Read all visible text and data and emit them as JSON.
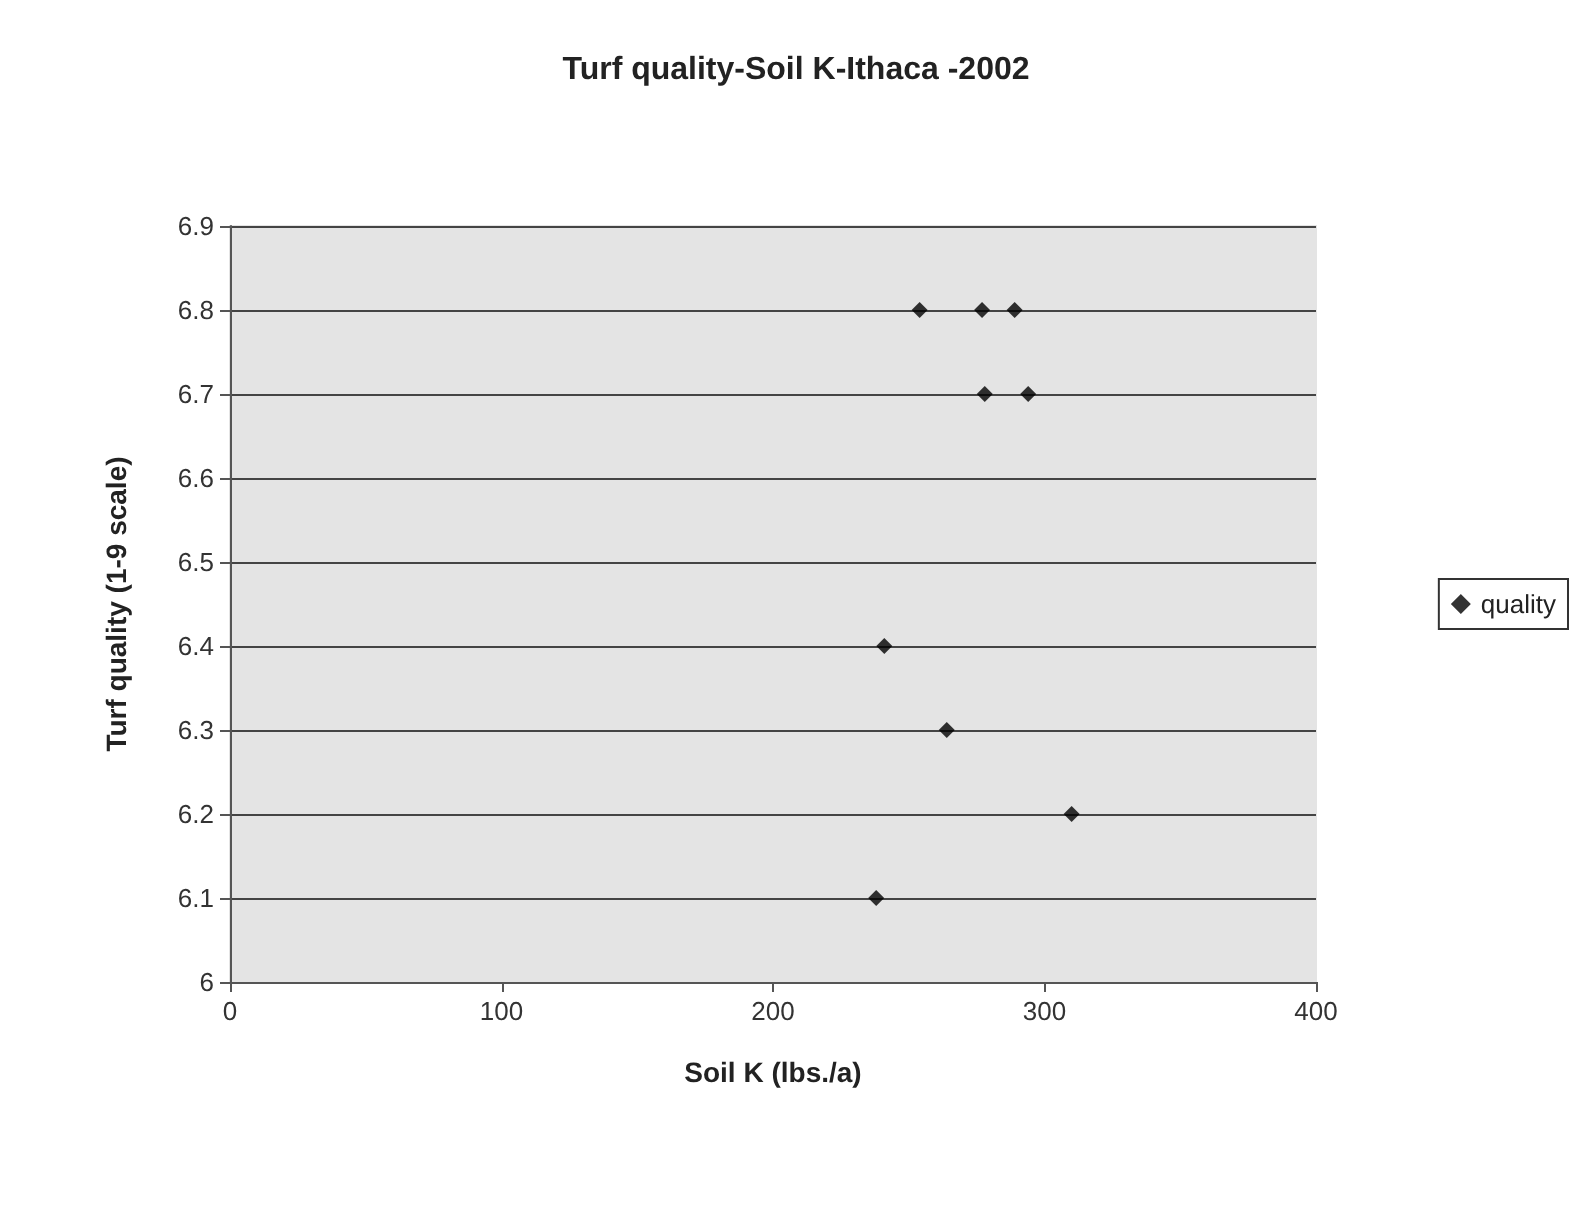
{
  "chart_data": {
    "type": "scatter",
    "title": "Turf quality-Soil K-Ithaca -2002",
    "xlabel": "Soil K (lbs./a)",
    "ylabel": "Turf quality (1-9 scale)",
    "series": [
      {
        "name": "quality",
        "color": "#000000",
        "x": [
          254,
          277,
          289,
          278,
          294,
          241,
          264,
          310,
          238
        ],
        "values": [
          6.8,
          6.8,
          6.8,
          6.7,
          6.7,
          6.4,
          6.3,
          6.2,
          6.1
        ]
      }
    ],
    "xlim": [
      0,
      400
    ],
    "xticks": [
      0,
      100,
      200,
      300,
      400
    ],
    "ylim": [
      6,
      6.9
    ],
    "yticks": [
      6,
      6.1,
      6.2,
      6.3,
      6.4,
      6.5,
      6.6,
      6.7,
      6.8,
      6.9
    ],
    "grid": "y",
    "legend": "right",
    "marker": "diamond"
  }
}
